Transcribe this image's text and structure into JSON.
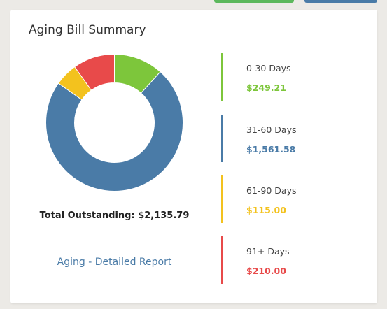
{
  "header_buttons": [
    {
      "color": "#5cb85c"
    },
    {
      "color": "#4a7ba7"
    }
  ],
  "card": {
    "title": "Aging Bill Summary",
    "total_label": "Total Outstanding: $2,135.79",
    "report_link": "Aging - Detailed Report"
  },
  "chart_data": {
    "type": "pie",
    "categories": [
      "0-30 Days",
      "31-60 Days",
      "61-90 Days",
      "91+ Days"
    ],
    "values": [
      249.21,
      1561.58,
      115.0,
      210.0
    ],
    "colors": [
      "#7dc63b",
      "#4a7ba7",
      "#f3c21e",
      "#e84a4a"
    ],
    "donut": true
  },
  "legend": [
    {
      "label": "0-30 Days",
      "value": "$249.21",
      "color": "#7dc63b"
    },
    {
      "label": "31-60 Days",
      "value": "$1,561.58",
      "color": "#4a7ba7"
    },
    {
      "label": "61-90 Days",
      "value": "$115.00",
      "color": "#f3c21e"
    },
    {
      "label": "91+ Days",
      "value": "$210.00",
      "color": "#e84a4a"
    }
  ]
}
